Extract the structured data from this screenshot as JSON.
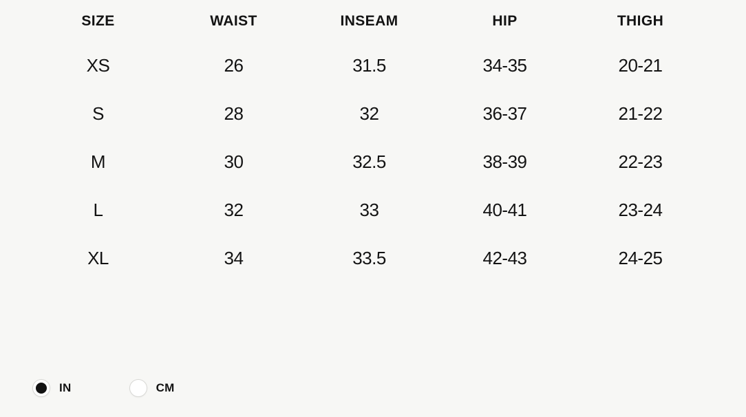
{
  "table": {
    "headers": [
      "SIZE",
      "WAIST",
      "INSEAM",
      "HIP",
      "THIGH"
    ],
    "rows": [
      [
        "XS",
        "26",
        "31.5",
        "34-35",
        "20-21"
      ],
      [
        "S",
        "28",
        "32",
        "36-37",
        "21-22"
      ],
      [
        "M",
        "30",
        "32.5",
        "38-39",
        "22-23"
      ],
      [
        "L",
        "32",
        "33",
        "40-41",
        "23-24"
      ],
      [
        "XL",
        "34",
        "33.5",
        "42-43",
        "24-25"
      ]
    ]
  },
  "units": {
    "options": [
      {
        "label": "IN",
        "selected": true
      },
      {
        "label": "CM",
        "selected": false
      }
    ]
  },
  "colors": {
    "background": "#f7f7f5",
    "text": "#131313",
    "radio_border": "#d8d8d5",
    "radio_dot": "#121212"
  }
}
